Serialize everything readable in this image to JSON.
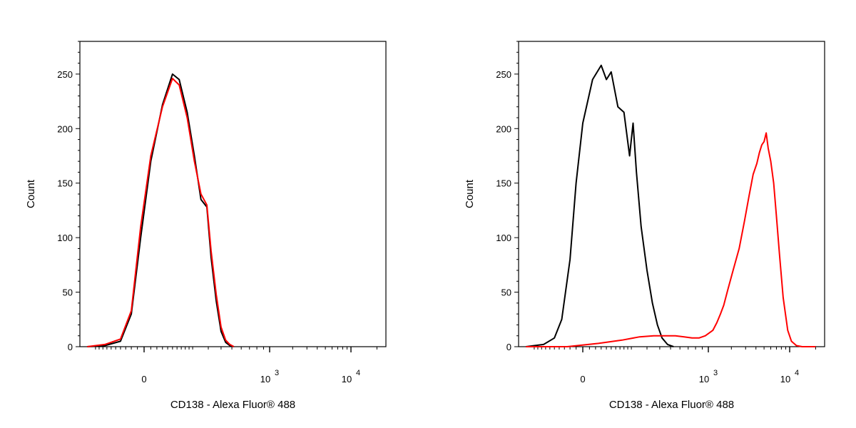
{
  "chart_data": [
    {
      "type": "line",
      "xlabel": "CD138 - Alexa Fluor® 488",
      "ylabel": "Count",
      "x_scale": "biexponential",
      "ylim": [
        0,
        280
      ],
      "y_ticks": [
        0,
        50,
        100,
        150,
        200,
        250
      ],
      "x_ticks": [
        {
          "value": 0,
          "base": "0",
          "exp": ""
        },
        {
          "value": 1000,
          "base": "10",
          "exp": "3"
        },
        {
          "value": 10000,
          "base": "10",
          "exp": "4"
        }
      ],
      "grid": false,
      "series": [
        {
          "color": "#000000",
          "points": [
            [
              -250,
              0
            ],
            [
              -150,
              1
            ],
            [
              -80,
              5
            ],
            [
              -40,
              30
            ],
            [
              -10,
              100
            ],
            [
              20,
              170
            ],
            [
              60,
              222
            ],
            [
              100,
              250
            ],
            [
              130,
              245
            ],
            [
              170,
              215
            ],
            [
              210,
              175
            ],
            [
              250,
              135
            ],
            [
              290,
              128
            ],
            [
              320,
              82
            ],
            [
              360,
              42
            ],
            [
              400,
              14
            ],
            [
              440,
              4
            ],
            [
              480,
              1
            ],
            [
              520,
              0
            ]
          ]
        },
        {
          "color": "#ff0000",
          "points": [
            [
              -250,
              0
            ],
            [
              -150,
              2
            ],
            [
              -80,
              7
            ],
            [
              -40,
              33
            ],
            [
              -10,
              110
            ],
            [
              20,
              175
            ],
            [
              60,
              220
            ],
            [
              100,
              246
            ],
            [
              130,
              240
            ],
            [
              170,
              210
            ],
            [
              210,
              170
            ],
            [
              250,
              140
            ],
            [
              290,
              130
            ],
            [
              320,
              88
            ],
            [
              360,
              48
            ],
            [
              400,
              18
            ],
            [
              440,
              6
            ],
            [
              480,
              2
            ],
            [
              520,
              0
            ]
          ]
        }
      ]
    },
    {
      "type": "line",
      "xlabel": "CD138 - Alexa Fluor® 488",
      "ylabel": "Count",
      "x_scale": "biexponential",
      "ylim": [
        0,
        280
      ],
      "y_ticks": [
        0,
        50,
        100,
        150,
        200,
        250
      ],
      "x_ticks": [
        {
          "value": 0,
          "base": "0",
          "exp": ""
        },
        {
          "value": 1000,
          "base": "10",
          "exp": "3"
        },
        {
          "value": 10000,
          "base": "10",
          "exp": "4"
        }
      ],
      "grid": false,
      "series": [
        {
          "color": "#000000",
          "points": [
            [
              -250,
              0
            ],
            [
              -150,
              2
            ],
            [
              -100,
              8
            ],
            [
              -70,
              25
            ],
            [
              -40,
              80
            ],
            [
              -20,
              150
            ],
            [
              0,
              205
            ],
            [
              30,
              245
            ],
            [
              60,
              258
            ],
            [
              80,
              245
            ],
            [
              100,
              252
            ],
            [
              130,
              220
            ],
            [
              160,
              215
            ],
            [
              190,
              175
            ],
            [
              210,
              205
            ],
            [
              230,
              160
            ],
            [
              260,
              110
            ],
            [
              300,
              70
            ],
            [
              340,
              40
            ],
            [
              380,
              20
            ],
            [
              420,
              8
            ],
            [
              470,
              2
            ],
            [
              530,
              0
            ]
          ]
        },
        {
          "color": "#ff0000",
          "points": [
            [
              -250,
              0
            ],
            [
              -50,
              0
            ],
            [
              50,
              3
            ],
            [
              150,
              6
            ],
            [
              250,
              9
            ],
            [
              350,
              10
            ],
            [
              450,
              10
            ],
            [
              550,
              10
            ],
            [
              650,
              9
            ],
            [
              750,
              8
            ],
            [
              850,
              8
            ],
            [
              950,
              10
            ],
            [
              1150,
              15
            ],
            [
              1300,
              22
            ],
            [
              1450,
              30
            ],
            [
              1600,
              38
            ],
            [
              1800,
              52
            ],
            [
              2100,
              70
            ],
            [
              2500,
              90
            ],
            [
              2900,
              115
            ],
            [
              3300,
              138
            ],
            [
              3700,
              158
            ],
            [
              4100,
              168
            ],
            [
              4400,
              178
            ],
            [
              4700,
              185
            ],
            [
              5000,
              188
            ],
            [
              5300,
              196
            ],
            [
              5600,
              182
            ],
            [
              6000,
              170
            ],
            [
              6500,
              150
            ],
            [
              7000,
              120
            ],
            [
              7600,
              85
            ],
            [
              8400,
              45
            ],
            [
              9500,
              15
            ],
            [
              10500,
              5
            ],
            [
              12000,
              1
            ],
            [
              14000,
              0
            ],
            [
              20000,
              0
            ]
          ]
        }
      ]
    }
  ]
}
